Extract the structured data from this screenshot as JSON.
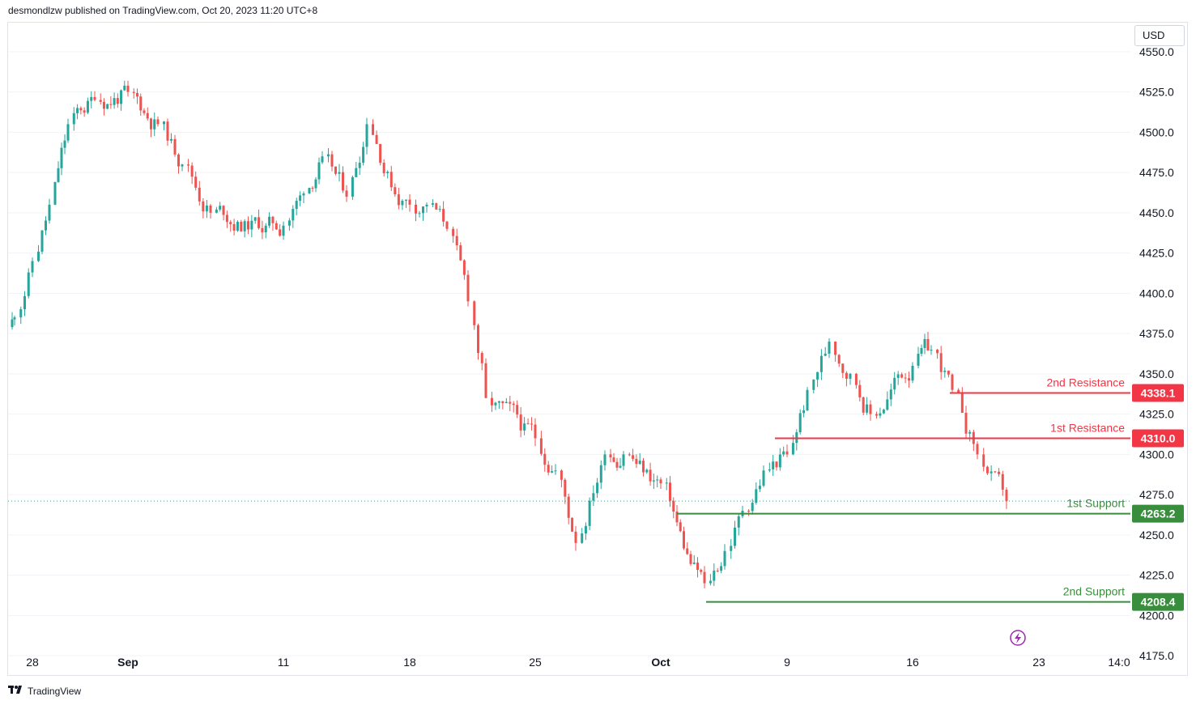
{
  "header": {
    "text": "desmondlzw published on TradingView.com, Oct 20, 2023 11:20 UTC+8"
  },
  "currency": "USD",
  "footer": {
    "logo_icon": "tradingview-logo-icon",
    "text": "TradingView"
  },
  "colors": {
    "up": "#26a69a",
    "down": "#ef5350",
    "resistance": "#f23645",
    "support": "#388e3c"
  },
  "chart_data": {
    "type": "candlestick",
    "y_axis": {
      "ticks": [
        "4550.0",
        "4525.0",
        "4500.0",
        "4475.0",
        "4450.0",
        "4425.0",
        "4400.0",
        "4375.0",
        "4350.0",
        "4325.0",
        "4300.0",
        "4275.0",
        "4250.0",
        "4225.0",
        "4200.0",
        "4175.0"
      ],
      "ylim": [
        4163,
        4568
      ]
    },
    "x_axis": {
      "ticks": [
        "28",
        "Sep",
        "11",
        "18",
        "25",
        "Oct",
        "9",
        "16",
        "23",
        "14:0"
      ]
    },
    "levels": [
      {
        "name": "2nd Resistance",
        "value": 4338.1,
        "label": "4338.1",
        "kind": "resistance"
      },
      {
        "name": "1st Resistance",
        "value": 4310.0,
        "label": "4310.0",
        "kind": "resistance"
      },
      {
        "name": "1st Support",
        "value": 4263.2,
        "label": "4263.2",
        "kind": "support"
      },
      {
        "name": "2nd Support",
        "value": 4208.4,
        "label": "4208.4",
        "kind": "support"
      }
    ],
    "last_price": 4271,
    "waypoints": [
      {
        "date": "Aug 28",
        "close": 4385
      },
      {
        "date": "Aug 29",
        "close": 4420
      },
      {
        "date": "Aug 30",
        "close": 4455
      },
      {
        "date": "Aug 31",
        "close": 4505
      },
      {
        "date": "Sep 1",
        "close": 4520
      },
      {
        "date": "Sep 5",
        "close": 4525
      },
      {
        "date": "Sep 6",
        "close": 4505
      },
      {
        "date": "Sep 7",
        "close": 4480
      },
      {
        "date": "Sep 8",
        "close": 4450
      },
      {
        "date": "Sep 11",
        "close": 4442
      },
      {
        "date": "Sep 12",
        "close": 4462
      },
      {
        "date": "Sep 13",
        "close": 4485
      },
      {
        "date": "Sep 14",
        "close": 4460
      },
      {
        "date": "Sep 15",
        "close": 4505
      },
      {
        "date": "Sep 18",
        "close": 4455
      },
      {
        "date": "Sep 19",
        "close": 4455
      },
      {
        "date": "Sep 20",
        "close": 4440
      },
      {
        "date": "Sep 21",
        "close": 4395
      },
      {
        "date": "Sep 22",
        "close": 4335
      },
      {
        "date": "Sep 25",
        "close": 4310
      },
      {
        "date": "Sep 26",
        "close": 4290
      },
      {
        "date": "Sep 27",
        "close": 4245
      },
      {
        "date": "Sep 28",
        "close": 4300
      },
      {
        "date": "Sep 29",
        "close": 4300
      },
      {
        "date": "Oct 2",
        "close": 4282
      },
      {
        "date": "Oct 3",
        "close": 4220
      },
      {
        "date": "Oct 4",
        "close": 4240
      },
      {
        "date": "Oct 5",
        "close": 4265
      },
      {
        "date": "Oct 6",
        "close": 4290
      },
      {
        "date": "Oct 9",
        "close": 4300
      },
      {
        "date": "Oct 10",
        "close": 4340
      },
      {
        "date": "Oct 11",
        "close": 4370
      },
      {
        "date": "Oct 12",
        "close": 4350
      },
      {
        "date": "Oct 13",
        "close": 4325
      },
      {
        "date": "Oct 16",
        "close": 4355
      },
      {
        "date": "Oct 17",
        "close": 4365
      },
      {
        "date": "Oct 18",
        "close": 4340
      },
      {
        "date": "Oct 19",
        "close": 4300
      },
      {
        "date": "Oct 20",
        "close": 4271
      }
    ]
  }
}
